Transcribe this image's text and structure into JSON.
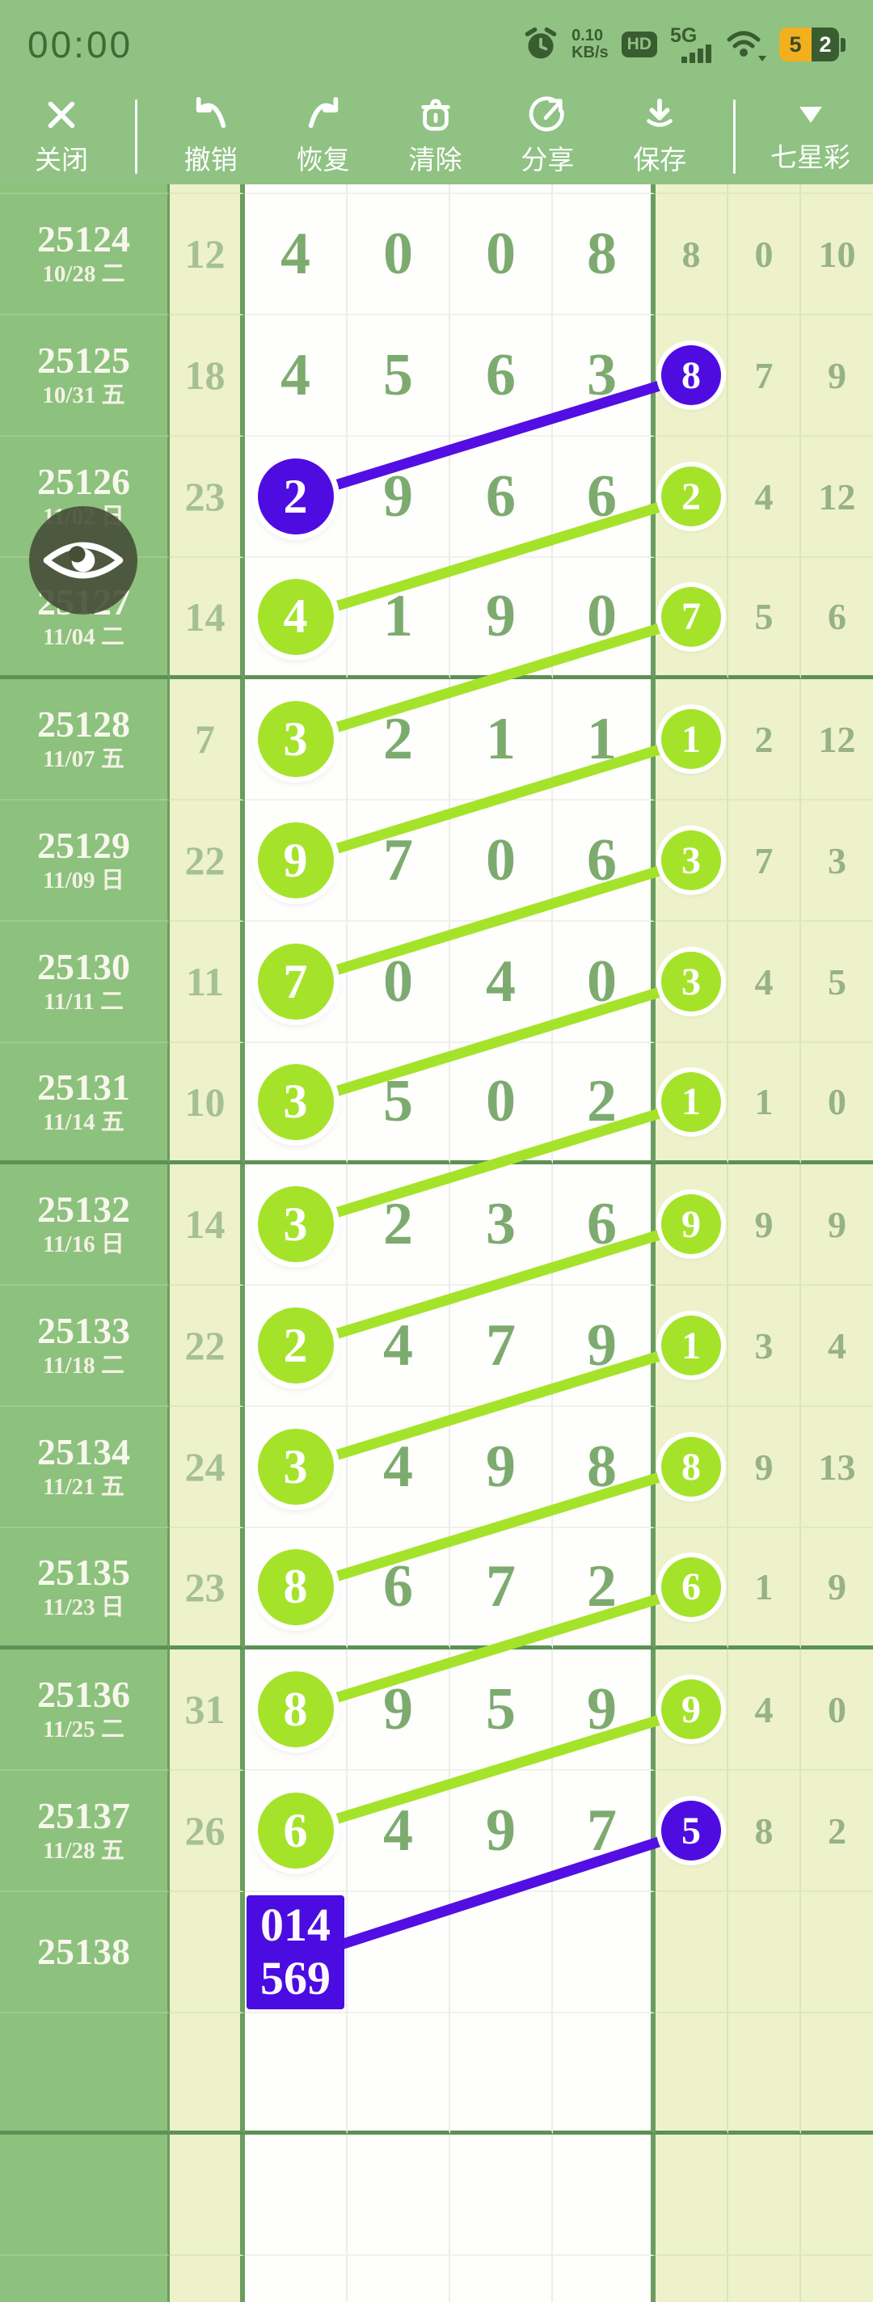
{
  "status_bar": {
    "time": "00:00",
    "net_speed_value": "0.10",
    "net_speed_unit": "KB/s",
    "hd_badge": "HD",
    "network_type": "5G",
    "battery_percent": "52"
  },
  "toolbar": {
    "close_label": "关闭",
    "undo_label": "撤销",
    "redo_label": "恢复",
    "clear_label": "清除",
    "share_label": "分享",
    "save_label": "保存",
    "lottery_label": "七星彩"
  },
  "table": {
    "rows": [
      {
        "period": "25124",
        "date": "10/28 二",
        "sum": "12",
        "digits": [
          "4",
          "0",
          "0",
          "8"
        ],
        "digit_circle": null,
        "tails": [
          "8",
          "0",
          "10"
        ],
        "tail_circle": null,
        "group_end": false
      },
      {
        "period": "25125",
        "date": "10/31 五",
        "sum": "18",
        "digits": [
          "4",
          "5",
          "6",
          "3"
        ],
        "digit_circle": null,
        "tails": [
          "8",
          "7",
          "9"
        ],
        "tail_circle": "purple",
        "group_end": false
      },
      {
        "period": "25126",
        "date": "11/02 日",
        "sum": "23",
        "digits": [
          "2",
          "9",
          "6",
          "6"
        ],
        "digit_circle": "purple",
        "tails": [
          "2",
          "4",
          "12"
        ],
        "tail_circle": "green",
        "group_end": false
      },
      {
        "period": "25127",
        "date": "11/04 二",
        "sum": "14",
        "digits": [
          "4",
          "1",
          "9",
          "0"
        ],
        "digit_circle": "green",
        "tails": [
          "7",
          "5",
          "6"
        ],
        "tail_circle": "green",
        "group_end": true
      },
      {
        "period": "25128",
        "date": "11/07 五",
        "sum": "7",
        "digits": [
          "3",
          "2",
          "1",
          "1"
        ],
        "digit_circle": "green",
        "tails": [
          "1",
          "2",
          "12"
        ],
        "tail_circle": "green",
        "group_end": false
      },
      {
        "period": "25129",
        "date": "11/09 日",
        "sum": "22",
        "digits": [
          "9",
          "7",
          "0",
          "6"
        ],
        "digit_circle": "green",
        "tails": [
          "3",
          "7",
          "3"
        ],
        "tail_circle": "green",
        "group_end": false
      },
      {
        "period": "25130",
        "date": "11/11 二",
        "sum": "11",
        "digits": [
          "7",
          "0",
          "4",
          "0"
        ],
        "digit_circle": "green",
        "tails": [
          "3",
          "4",
          "5"
        ],
        "tail_circle": "green",
        "group_end": false
      },
      {
        "period": "25131",
        "date": "11/14 五",
        "sum": "10",
        "digits": [
          "3",
          "5",
          "0",
          "2"
        ],
        "digit_circle": "green",
        "tails": [
          "1",
          "1",
          "0"
        ],
        "tail_circle": "green",
        "group_end": true
      },
      {
        "period": "25132",
        "date": "11/16 日",
        "sum": "14",
        "digits": [
          "3",
          "2",
          "3",
          "6"
        ],
        "digit_circle": "green",
        "tails": [
          "9",
          "9",
          "9"
        ],
        "tail_circle": "green",
        "group_end": false
      },
      {
        "period": "25133",
        "date": "11/18 二",
        "sum": "22",
        "digits": [
          "2",
          "4",
          "7",
          "9"
        ],
        "digit_circle": "green",
        "tails": [
          "1",
          "3",
          "4"
        ],
        "tail_circle": "green",
        "group_end": false
      },
      {
        "period": "25134",
        "date": "11/21 五",
        "sum": "24",
        "digits": [
          "3",
          "4",
          "9",
          "8"
        ],
        "digit_circle": "green",
        "tails": [
          "8",
          "9",
          "13"
        ],
        "tail_circle": "green",
        "group_end": false
      },
      {
        "period": "25135",
        "date": "11/23 日",
        "sum": "23",
        "digits": [
          "8",
          "6",
          "7",
          "2"
        ],
        "digit_circle": "green",
        "tails": [
          "6",
          "1",
          "9"
        ],
        "tail_circle": "green",
        "group_end": true
      },
      {
        "period": "25136",
        "date": "11/25 二",
        "sum": "31",
        "digits": [
          "8",
          "9",
          "5",
          "9"
        ],
        "digit_circle": "green",
        "tails": [
          "9",
          "4",
          "0"
        ],
        "tail_circle": "green",
        "group_end": false
      },
      {
        "period": "25137",
        "date": "11/28 五",
        "sum": "26",
        "digits": [
          "6",
          "4",
          "9",
          "7"
        ],
        "digit_circle": "green",
        "tails": [
          "5",
          "8",
          "2"
        ],
        "tail_circle": "purple",
        "group_end": false
      }
    ],
    "prediction": {
      "period": "25138",
      "box_lines": [
        "014",
        "569"
      ]
    },
    "trend_lines": [
      {
        "from": "25125",
        "to": "25126",
        "color": "purple"
      },
      {
        "from": "25126",
        "to": "25127",
        "color": "green"
      },
      {
        "from": "25127",
        "to": "25128",
        "color": "green"
      },
      {
        "from": "25128",
        "to": "25129",
        "color": "green"
      },
      {
        "from": "25129",
        "to": "25130",
        "color": "green"
      },
      {
        "from": "25130",
        "to": "25131",
        "color": "green"
      },
      {
        "from": "25131",
        "to": "25132",
        "color": "green"
      },
      {
        "from": "25132",
        "to": "25133",
        "color": "green"
      },
      {
        "from": "25133",
        "to": "25134",
        "color": "green"
      },
      {
        "from": "25134",
        "to": "25135",
        "color": "green"
      },
      {
        "from": "25135",
        "to": "25136",
        "color": "green"
      },
      {
        "from": "25136",
        "to": "25137",
        "color": "green"
      },
      {
        "from": "25137",
        "to": "25138",
        "color": "purple"
      }
    ]
  },
  "colors": {
    "app_green": "#8fc283",
    "left_col_green": "#8cc17e",
    "pale_cell": "#edf2cb",
    "white_cell": "#fefefc",
    "border_dark": "#6b9c60",
    "group_separator": "#5e9055",
    "digit_text": "#7dab6f",
    "sum_text": "#a6c094",
    "tail_text": "#97b287",
    "circle_green": "#a5e32b",
    "circle_purple": "#4f0ce0",
    "line_green": "#a5e32b",
    "line_purple": "#530fe3",
    "pred_box": "#4a0ce0",
    "battery_yellow": "#f2b01e",
    "status_icon": "#3a5c31"
  }
}
